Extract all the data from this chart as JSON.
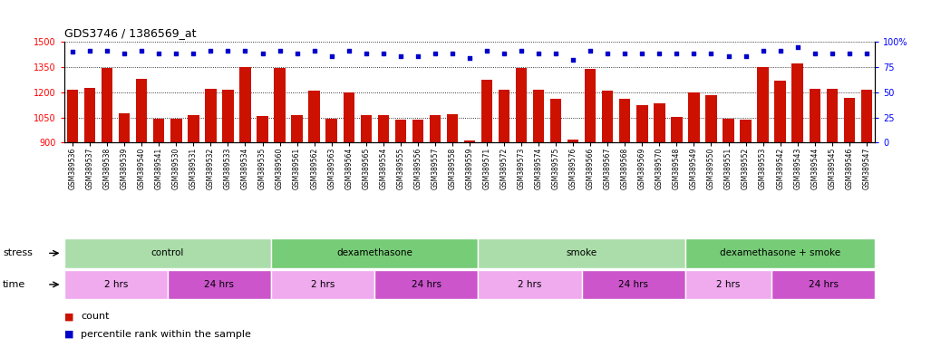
{
  "title": "GDS3746 / 1386569_at",
  "samples": [
    "GSM389536",
    "GSM389537",
    "GSM389538",
    "GSM389539",
    "GSM389540",
    "GSM389541",
    "GSM389530",
    "GSM389531",
    "GSM389532",
    "GSM389533",
    "GSM389534",
    "GSM389535",
    "GSM389560",
    "GSM389561",
    "GSM389562",
    "GSM389563",
    "GSM389564",
    "GSM389565",
    "GSM389554",
    "GSM389555",
    "GSM389556",
    "GSM389557",
    "GSM389558",
    "GSM389559",
    "GSM389571",
    "GSM389572",
    "GSM389573",
    "GSM389574",
    "GSM389575",
    "GSM389576",
    "GSM389566",
    "GSM389567",
    "GSM389568",
    "GSM389569",
    "GSM389570",
    "GSM389548",
    "GSM389549",
    "GSM389550",
    "GSM389551",
    "GSM389552",
    "GSM389553",
    "GSM389542",
    "GSM389543",
    "GSM389544",
    "GSM389545",
    "GSM389546",
    "GSM389547"
  ],
  "counts": [
    1215,
    1225,
    1345,
    1075,
    1280,
    1045,
    1045,
    1062,
    1220,
    1215,
    1350,
    1060,
    1345,
    1062,
    1210,
    1045,
    1198,
    1065,
    1063,
    1035,
    1038,
    1065,
    1068,
    912,
    1275,
    1215,
    1345,
    1215,
    1160,
    920,
    1340,
    1210,
    1160,
    1125,
    1135,
    1052,
    1197,
    1185,
    1042,
    1035,
    1350,
    1270,
    1370,
    1220,
    1220,
    1165,
    1215
  ],
  "percentiles": [
    90,
    91,
    91,
    88,
    91,
    88,
    88,
    88,
    91,
    91,
    91,
    88,
    91,
    88,
    91,
    86,
    91,
    88,
    88,
    86,
    86,
    88,
    88,
    84,
    91,
    88,
    91,
    88,
    88,
    82,
    91,
    88,
    88,
    88,
    88,
    88,
    88,
    88,
    86,
    86,
    91,
    91,
    95,
    88,
    88,
    88,
    88
  ],
  "ylim_left": [
    900,
    1500
  ],
  "ylim_right": [
    0,
    100
  ],
  "bar_color": "#CC1100",
  "dot_color": "#0000CC",
  "stress_groups": [
    {
      "label": "control",
      "start": 0,
      "end": 12,
      "color": "#AADDAA"
    },
    {
      "label": "dexamethasone",
      "start": 12,
      "end": 24,
      "color": "#77CC77"
    },
    {
      "label": "smoke",
      "start": 24,
      "end": 36,
      "color": "#AADDAA"
    },
    {
      "label": "dexamethasone + smoke",
      "start": 36,
      "end": 47,
      "color": "#77CC77"
    }
  ],
  "time_groups": [
    {
      "label": "2 hrs",
      "start": 0,
      "end": 6,
      "color": "#F0AAEE"
    },
    {
      "label": "24 hrs",
      "start": 6,
      "end": 12,
      "color": "#CC55CC"
    },
    {
      "label": "2 hrs",
      "start": 12,
      "end": 18,
      "color": "#F0AAEE"
    },
    {
      "label": "24 hrs",
      "start": 18,
      "end": 24,
      "color": "#CC55CC"
    },
    {
      "label": "2 hrs",
      "start": 24,
      "end": 30,
      "color": "#F0AAEE"
    },
    {
      "label": "24 hrs",
      "start": 30,
      "end": 36,
      "color": "#CC55CC"
    },
    {
      "label": "2 hrs",
      "start": 36,
      "end": 41,
      "color": "#F0AAEE"
    },
    {
      "label": "24 hrs",
      "start": 41,
      "end": 47,
      "color": "#CC55CC"
    }
  ],
  "grid_values_left": [
    900,
    1050,
    1200,
    1350,
    1500
  ],
  "grid_values_right": [
    0,
    25,
    50,
    75,
    100
  ],
  "stress_label": "stress",
  "time_label": "time",
  "legend_count_label": "count",
  "legend_pct_label": "percentile rank within the sample",
  "fig_width": 10.38,
  "fig_height": 3.84,
  "dpi": 100
}
